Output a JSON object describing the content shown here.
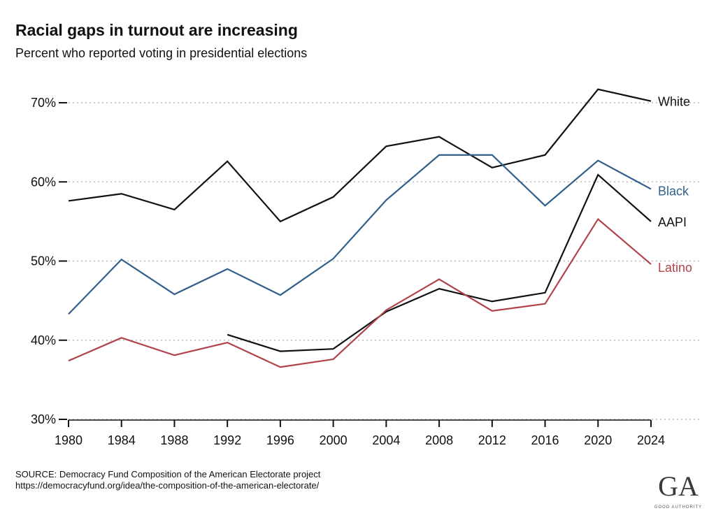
{
  "chart_data": {
    "type": "line",
    "title": "Racial gaps in turnout are increasing",
    "subtitle": "Percent who reported voting in presidential elections",
    "xlabel": "",
    "ylabel": "",
    "x": [
      1980,
      1984,
      1988,
      1992,
      1996,
      2000,
      2004,
      2008,
      2012,
      2016,
      2020,
      2024
    ],
    "xlim": [
      1980,
      2024
    ],
    "ylim": [
      30,
      70
    ],
    "yticks": [
      30,
      40,
      50,
      60,
      70
    ],
    "ytick_labels": [
      "30%",
      "40%",
      "50%",
      "60%",
      "70%"
    ],
    "xtick_labels": [
      "1980",
      "1984",
      "1988",
      "1992",
      "1996",
      "2000",
      "2004",
      "2008",
      "2012",
      "2016",
      "2020",
      "2024"
    ],
    "grid": "horizontal dotted",
    "legend": "direct labels at right end of lines",
    "series": [
      {
        "name": "White",
        "color": "#111111",
        "values": [
          57.6,
          58.5,
          56.5,
          62.6,
          55.0,
          58.1,
          64.5,
          65.7,
          61.8,
          63.4,
          71.7,
          70.2
        ]
      },
      {
        "name": "Black",
        "color": "#2f5f8a",
        "values": [
          43.3,
          50.2,
          45.8,
          49.0,
          45.7,
          50.3,
          57.7,
          63.4,
          63.4,
          57.0,
          62.7,
          59.1
        ]
      },
      {
        "name": "AAPI",
        "color": "#111111",
        "values": [
          null,
          null,
          null,
          40.7,
          38.6,
          38.9,
          43.6,
          46.5,
          44.9,
          46.0,
          60.9,
          55.0
        ]
      },
      {
        "name": "Latino",
        "color": "#b0434b",
        "values": [
          37.4,
          40.3,
          38.1,
          39.7,
          36.6,
          37.6,
          43.8,
          47.7,
          43.7,
          44.6,
          55.3,
          49.6
        ]
      }
    ]
  },
  "source": {
    "line1": "SOURCE: Democracy Fund Composition of the American Electorate project",
    "line2": "https://democracyfund.org/idea/the-composition-of-the-american-electorate/"
  },
  "logo": {
    "mark": "GA",
    "text": "GOOD AUTHORITY"
  }
}
